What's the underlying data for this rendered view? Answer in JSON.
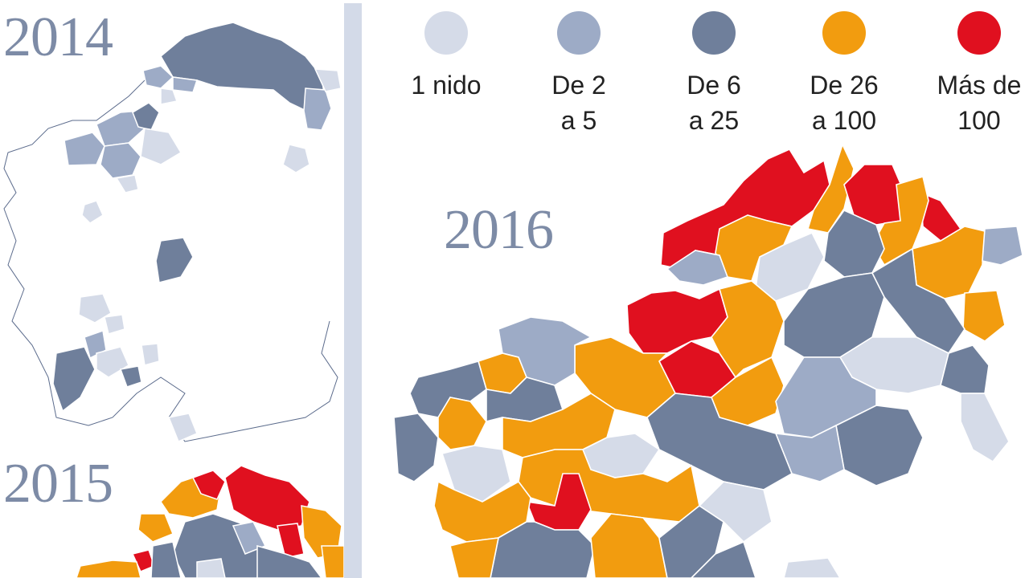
{
  "years": {
    "y2014": "2014",
    "y2015": "2015",
    "y2016": "2016"
  },
  "legend": [
    {
      "label": "1 nido",
      "color": "#d5dbe8"
    },
    {
      "label": "De 2\na 5",
      "color": "#9dabc6"
    },
    {
      "label": "De 6\na 25",
      "color": "#6f7f9b"
    },
    {
      "label": "De 26\na 100",
      "color": "#f29c0f"
    },
    {
      "label": "Más de\n100",
      "color": "#e0101f"
    }
  ],
  "colors": {
    "divider": "#d3dae8",
    "year_text": "#7d8ba6",
    "border": "#ffffff",
    "outline": "#5b6b8c"
  }
}
